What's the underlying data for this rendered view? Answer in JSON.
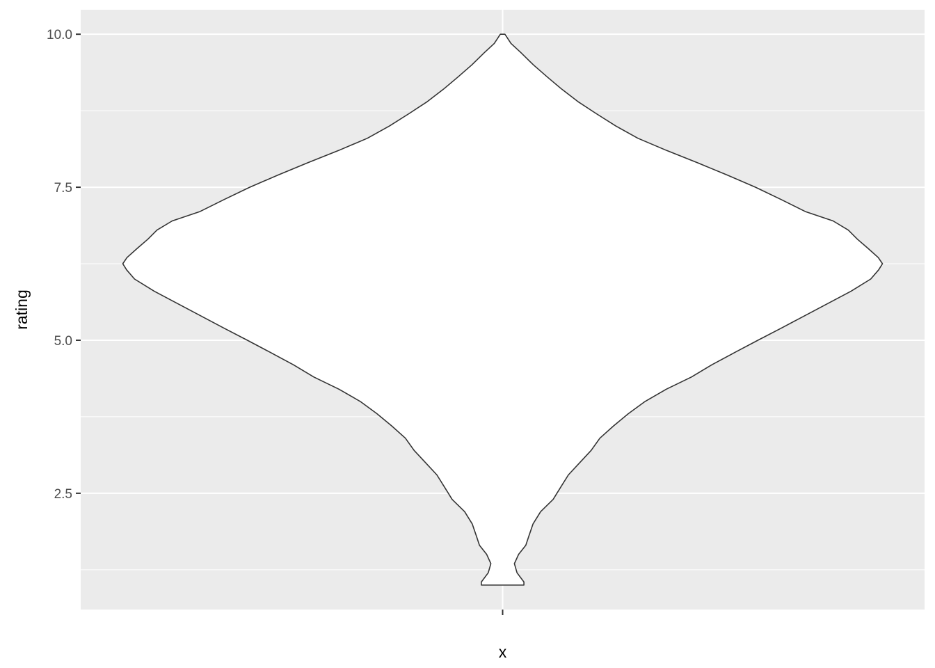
{
  "chart_data": {
    "type": "violin",
    "xlabel": "x",
    "ylabel": "rating",
    "categories": [
      ""
    ],
    "ylim": [
      0.6,
      10.4
    ],
    "y_ticks": [
      {
        "value": 2.5,
        "label": "2.5"
      },
      {
        "value": 5.0,
        "label": "5.0"
      },
      {
        "value": 7.5,
        "label": "7.5"
      },
      {
        "value": 10.0,
        "label": "10.0"
      }
    ],
    "y_minor_ticks": [
      3.75,
      6.25,
      8.75,
      1.25
    ],
    "violin_width": {
      "y": [
        1.0,
        1.05,
        1.2,
        1.35,
        1.5,
        1.65,
        1.8,
        2.0,
        2.2,
        2.4,
        2.6,
        2.8,
        3.0,
        3.2,
        3.4,
        3.6,
        3.8,
        4.0,
        4.2,
        4.4,
        4.6,
        4.8,
        5.0,
        5.2,
        5.4,
        5.6,
        5.8,
        6.0,
        6.15,
        6.25,
        6.35,
        6.5,
        6.65,
        6.8,
        6.95,
        7.1,
        7.3,
        7.5,
        7.7,
        7.9,
        8.1,
        8.3,
        8.5,
        8.7,
        8.9,
        9.1,
        9.3,
        9.5,
        9.7,
        9.85,
        10.0
      ],
      "width": [
        0.056,
        0.056,
        0.038,
        0.031,
        0.042,
        0.061,
        0.069,
        0.08,
        0.1,
        0.133,
        0.153,
        0.173,
        0.203,
        0.233,
        0.256,
        0.292,
        0.331,
        0.375,
        0.431,
        0.497,
        0.551,
        0.611,
        0.672,
        0.734,
        0.795,
        0.856,
        0.917,
        0.969,
        0.99,
        1.0,
        0.989,
        0.962,
        0.934,
        0.91,
        0.87,
        0.798,
        0.733,
        0.666,
        0.591,
        0.513,
        0.432,
        0.356,
        0.298,
        0.247,
        0.198,
        0.156,
        0.118,
        0.081,
        0.048,
        0.022,
        0.006
      ]
    }
  }
}
